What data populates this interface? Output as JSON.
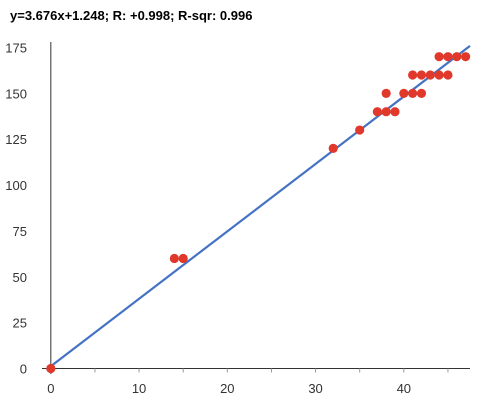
{
  "chart_data": {
    "type": "scatter",
    "title": "y=3.676x+1.248; R: +0.998; R-sqr: 0.996",
    "xlabel": "",
    "ylabel": "",
    "xlim": [
      -1,
      47.5
    ],
    "ylim": [
      -3,
      178
    ],
    "x_ticks": [
      0,
      10,
      20,
      30,
      40
    ],
    "y_ticks": [
      0,
      25,
      50,
      75,
      100,
      125,
      150,
      175
    ],
    "grid": false,
    "legend": "none",
    "trendline": {
      "slope": 3.676,
      "intercept": 1.248,
      "x_range": [
        0,
        47.5
      ],
      "color": "#4472c4"
    },
    "point_color": "#e0392b",
    "points": [
      {
        "x": 0,
        "y": 0
      },
      {
        "x": 14,
        "y": 60
      },
      {
        "x": 15,
        "y": 60
      },
      {
        "x": 32,
        "y": 120
      },
      {
        "x": 35,
        "y": 130
      },
      {
        "x": 37,
        "y": 140
      },
      {
        "x": 38,
        "y": 140
      },
      {
        "x": 38,
        "y": 150
      },
      {
        "x": 39,
        "y": 140
      },
      {
        "x": 40,
        "y": 150
      },
      {
        "x": 41,
        "y": 150
      },
      {
        "x": 41,
        "y": 160
      },
      {
        "x": 42,
        "y": 150
      },
      {
        "x": 42,
        "y": 160
      },
      {
        "x": 43,
        "y": 160
      },
      {
        "x": 44,
        "y": 160
      },
      {
        "x": 44,
        "y": 170
      },
      {
        "x": 45,
        "y": 160
      },
      {
        "x": 45,
        "y": 170
      },
      {
        "x": 46,
        "y": 170
      },
      {
        "x": 47,
        "y": 170
      }
    ]
  }
}
